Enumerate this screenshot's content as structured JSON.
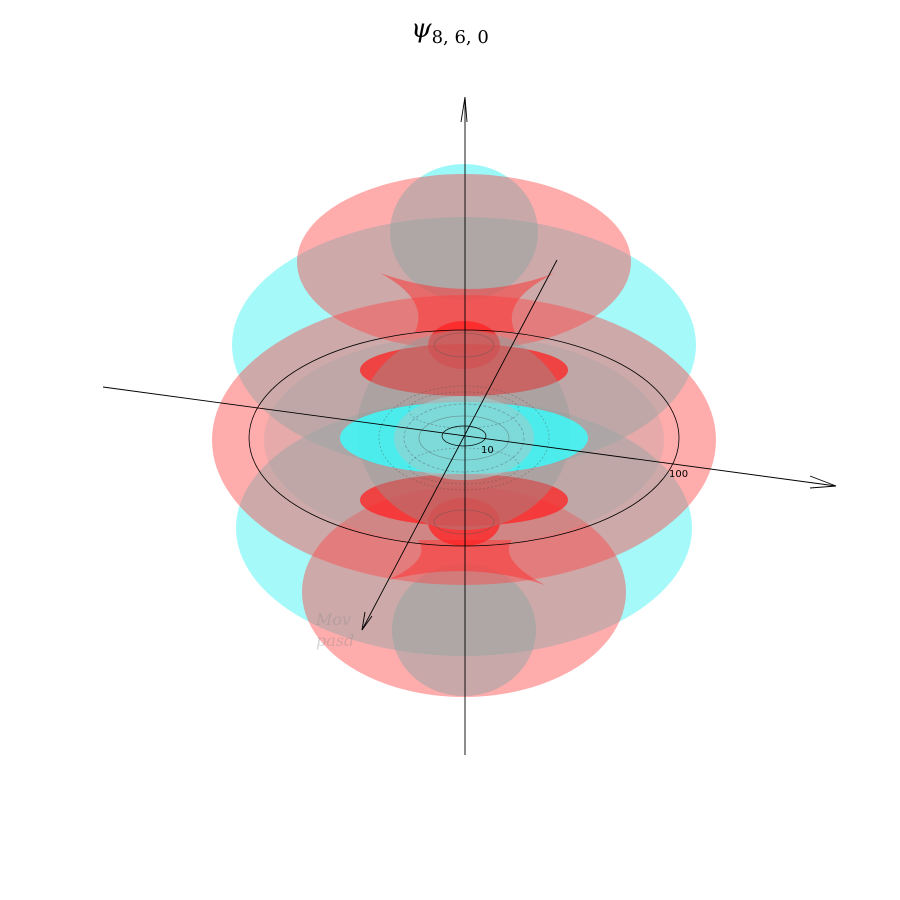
{
  "title": {
    "symbol": "ψ",
    "subscript": "8, 6, 0"
  },
  "colors": {
    "positive_lobe": "#ff5c5c",
    "negative_lobe": "#5cf5f5",
    "axes": "#000000"
  },
  "radial_ticks": [
    "10",
    "100"
  ],
  "watermark": {
    "line1": "Mov",
    "line2": "pasd"
  }
}
